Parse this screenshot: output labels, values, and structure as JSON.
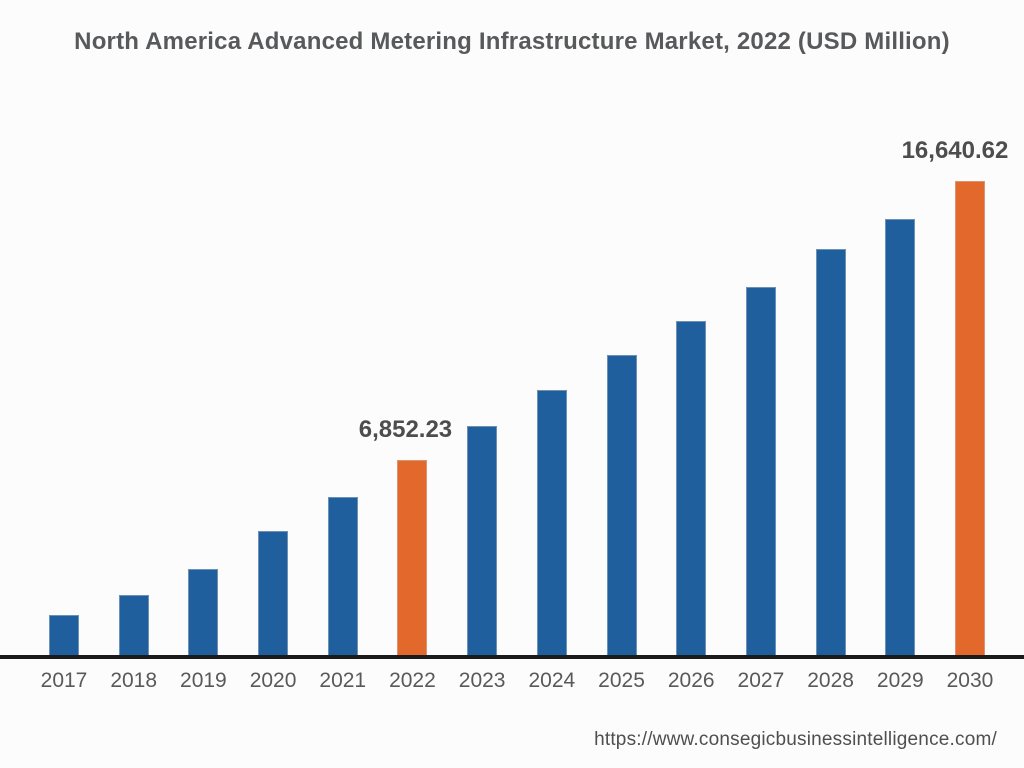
{
  "title": "North America Advanced Metering Infrastructure Market, 2022 (USD Million)",
  "footer": {
    "url": "https://www.consegicbusinessintelligence.com/"
  },
  "chart_data": {
    "type": "bar",
    "title": "North America Advanced Metering Infrastructure Market, 2022 (USD Million)",
    "unit": "USD Million",
    "categories": [
      "2017",
      "2018",
      "2019",
      "2020",
      "2021",
      "2022",
      "2023",
      "2024",
      "2025",
      "2026",
      "2027",
      "2028",
      "2029",
      "2030"
    ],
    "values": [
      1400,
      2110,
      3020,
      4350,
      5540,
      6852.23,
      8040,
      9300,
      10530,
      11720,
      12910,
      14250,
      15300,
      16640.62
    ],
    "data_labels": [
      {
        "category": "2022",
        "text": "6,852.23"
      },
      {
        "category": "2030",
        "text": "16,640.62"
      }
    ],
    "highlighted_categories": [
      "2022",
      "2030"
    ],
    "colors": {
      "bar_default": "#1F5F9E",
      "bar_highlight": "#E2692B",
      "axis": "#1b1b1b"
    },
    "xlabel": "",
    "ylabel": "",
    "ylim": [
      0,
      17500
    ],
    "grid": false,
    "legend": false
  }
}
